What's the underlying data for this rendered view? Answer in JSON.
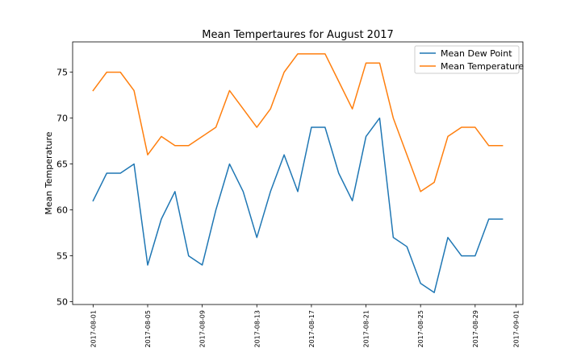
{
  "chart_data": {
    "type": "line",
    "title": "Mean Tempertaures for August 2017",
    "xlabel": "",
    "ylabel": "Mean Temperature",
    "x": [
      "2017-08-01",
      "2017-08-02",
      "2017-08-03",
      "2017-08-04",
      "2017-08-05",
      "2017-08-06",
      "2017-08-07",
      "2017-08-08",
      "2017-08-09",
      "2017-08-10",
      "2017-08-11",
      "2017-08-12",
      "2017-08-13",
      "2017-08-14",
      "2017-08-15",
      "2017-08-16",
      "2017-08-17",
      "2017-08-18",
      "2017-08-19",
      "2017-08-20",
      "2017-08-21",
      "2017-08-22",
      "2017-08-23",
      "2017-08-24",
      "2017-08-25",
      "2017-08-26",
      "2017-08-27",
      "2017-08-28",
      "2017-08-29",
      "2017-08-30",
      "2017-08-31"
    ],
    "xlim": [
      "2017-07-30T12:00",
      "2017-09-01T12:00"
    ],
    "ylim": [
      49.7,
      78.3
    ],
    "xticks": [
      "2017-08-01",
      "2017-08-05",
      "2017-08-09",
      "2017-08-13",
      "2017-08-17",
      "2017-08-21",
      "2017-08-25",
      "2017-08-29",
      "2017-09-01"
    ],
    "yticks": [
      50,
      55,
      60,
      65,
      70,
      75
    ],
    "grid": false,
    "legend_position": "top-right",
    "series": [
      {
        "name": "Mean Dew Point",
        "color": "#1f77b4",
        "values": [
          61,
          64,
          64,
          65,
          54,
          59,
          62,
          55,
          54,
          60,
          65,
          62,
          57,
          62,
          66,
          62,
          69,
          69,
          64,
          61,
          68,
          70,
          57,
          56,
          52,
          51,
          57,
          55,
          55,
          59,
          59
        ]
      },
      {
        "name": "Mean Temperature",
        "color": "#ff7f0e",
        "values": [
          73,
          75,
          75,
          73,
          66,
          68,
          67,
          67,
          68,
          69,
          73,
          71,
          69,
          71,
          75,
          77,
          77,
          77,
          74,
          71,
          76,
          76,
          70,
          66,
          62,
          63,
          68,
          69,
          69,
          67,
          67
        ]
      }
    ]
  }
}
